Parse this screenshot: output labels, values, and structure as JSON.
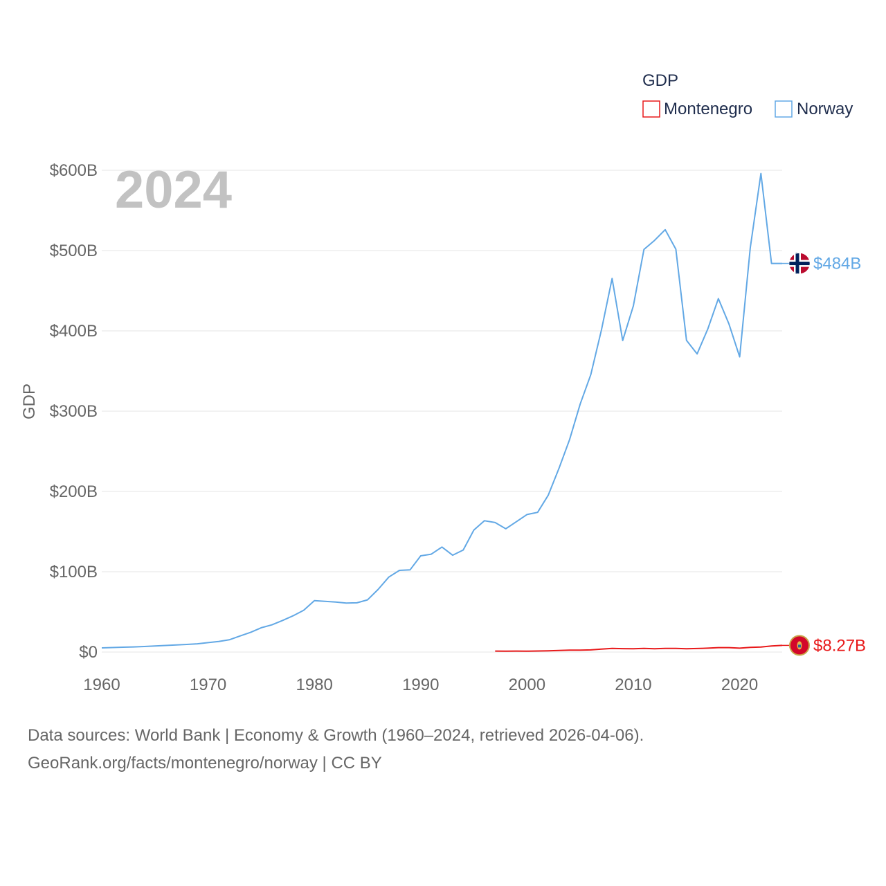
{
  "chart_data": {
    "type": "line",
    "title": "",
    "year_overlay": "2024",
    "legend_title": "GDP",
    "legend_position": "top-right",
    "ylabel": "GDP",
    "xlabel": "",
    "xlim": [
      1960,
      2024
    ],
    "ylim": [
      0,
      600
    ],
    "y_unit": "billion USD",
    "y_ticks": [
      {
        "value": 0,
        "label": "$0"
      },
      {
        "value": 100,
        "label": "$100B"
      },
      {
        "value": 200,
        "label": "$200B"
      },
      {
        "value": 300,
        "label": "$300B"
      },
      {
        "value": 400,
        "label": "$400B"
      },
      {
        "value": 500,
        "label": "$500B"
      },
      {
        "value": 600,
        "label": "$600B"
      }
    ],
    "x_ticks": [
      {
        "value": 1960,
        "label": "1960"
      },
      {
        "value": 1970,
        "label": "1970"
      },
      {
        "value": 1980,
        "label": "1980"
      },
      {
        "value": 1990,
        "label": "1990"
      },
      {
        "value": 2000,
        "label": "2000"
      },
      {
        "value": 2010,
        "label": "2010"
      },
      {
        "value": 2020,
        "label": "2020"
      }
    ],
    "grid": true,
    "series": [
      {
        "name": "Montenegro",
        "color": "#e8191a",
        "end_label": "$8.27B",
        "icon": "montenegro-flag-icon",
        "x": [
          1997,
          1998,
          1999,
          2000,
          2001,
          2002,
          2003,
          2004,
          2005,
          2006,
          2007,
          2008,
          2009,
          2010,
          2011,
          2012,
          2013,
          2014,
          2015,
          2016,
          2017,
          2018,
          2019,
          2020,
          2021,
          2022,
          2023,
          2024
        ],
        "values": [
          1.2,
          1.1,
          1.2,
          1.1,
          1.3,
          1.5,
          1.9,
          2.3,
          2.3,
          2.7,
          3.7,
          4.5,
          4.2,
          4.1,
          4.5,
          4.1,
          4.5,
          4.6,
          4.1,
          4.4,
          4.8,
          5.5,
          5.5,
          4.8,
          5.9,
          6.3,
          7.5,
          8.27
        ]
      },
      {
        "name": "Norway",
        "color": "#62a8e5",
        "end_label": "$484B",
        "icon": "norway-flag-icon",
        "x": [
          1960,
          1961,
          1962,
          1963,
          1964,
          1965,
          1966,
          1967,
          1968,
          1969,
          1970,
          1971,
          1972,
          1973,
          1974,
          1975,
          1976,
          1977,
          1978,
          1979,
          1980,
          1981,
          1982,
          1983,
          1984,
          1985,
          1986,
          1987,
          1988,
          1989,
          1990,
          1991,
          1992,
          1993,
          1994,
          1995,
          1996,
          1997,
          1998,
          1999,
          2000,
          2001,
          2002,
          2003,
          2004,
          2005,
          2006,
          2007,
          2008,
          2009,
          2010,
          2011,
          2012,
          2013,
          2014,
          2015,
          2016,
          2017,
          2018,
          2019,
          2020,
          2021,
          2022,
          2023,
          2024
        ],
        "values": [
          5.2,
          5.6,
          6.0,
          6.4,
          6.9,
          7.6,
          8.2,
          8.9,
          9.5,
          10.3,
          11.7,
          13.2,
          15.3,
          20.0,
          24.5,
          30.3,
          33.9,
          39.3,
          45.2,
          52.1,
          64.0,
          63.1,
          62.3,
          61.0,
          61.3,
          65.0,
          78.0,
          93.4,
          101.7,
          102.3,
          119.8,
          121.9,
          130.8,
          120.6,
          127.1,
          152.0,
          163.5,
          161.3,
          153.5,
          162.3,
          171.3,
          174.0,
          195.4,
          228.6,
          264.4,
          308.9,
          345.4,
          401.1,
          465.3,
          388.0,
          431.1,
          501.4,
          512.8,
          526.0,
          501.7,
          388.2,
          371.3,
          402.2,
          440.2,
          408.4,
          367.6,
          503.4,
          596.0,
          484.0,
          484.0
        ]
      }
    ]
  },
  "footer": {
    "line1": "Data sources: World Bank | Economy & Growth (1960–2024, retrieved 2026-04-06).",
    "line2": "GeoRank.org/facts/montenegro/norway | CC BY"
  }
}
